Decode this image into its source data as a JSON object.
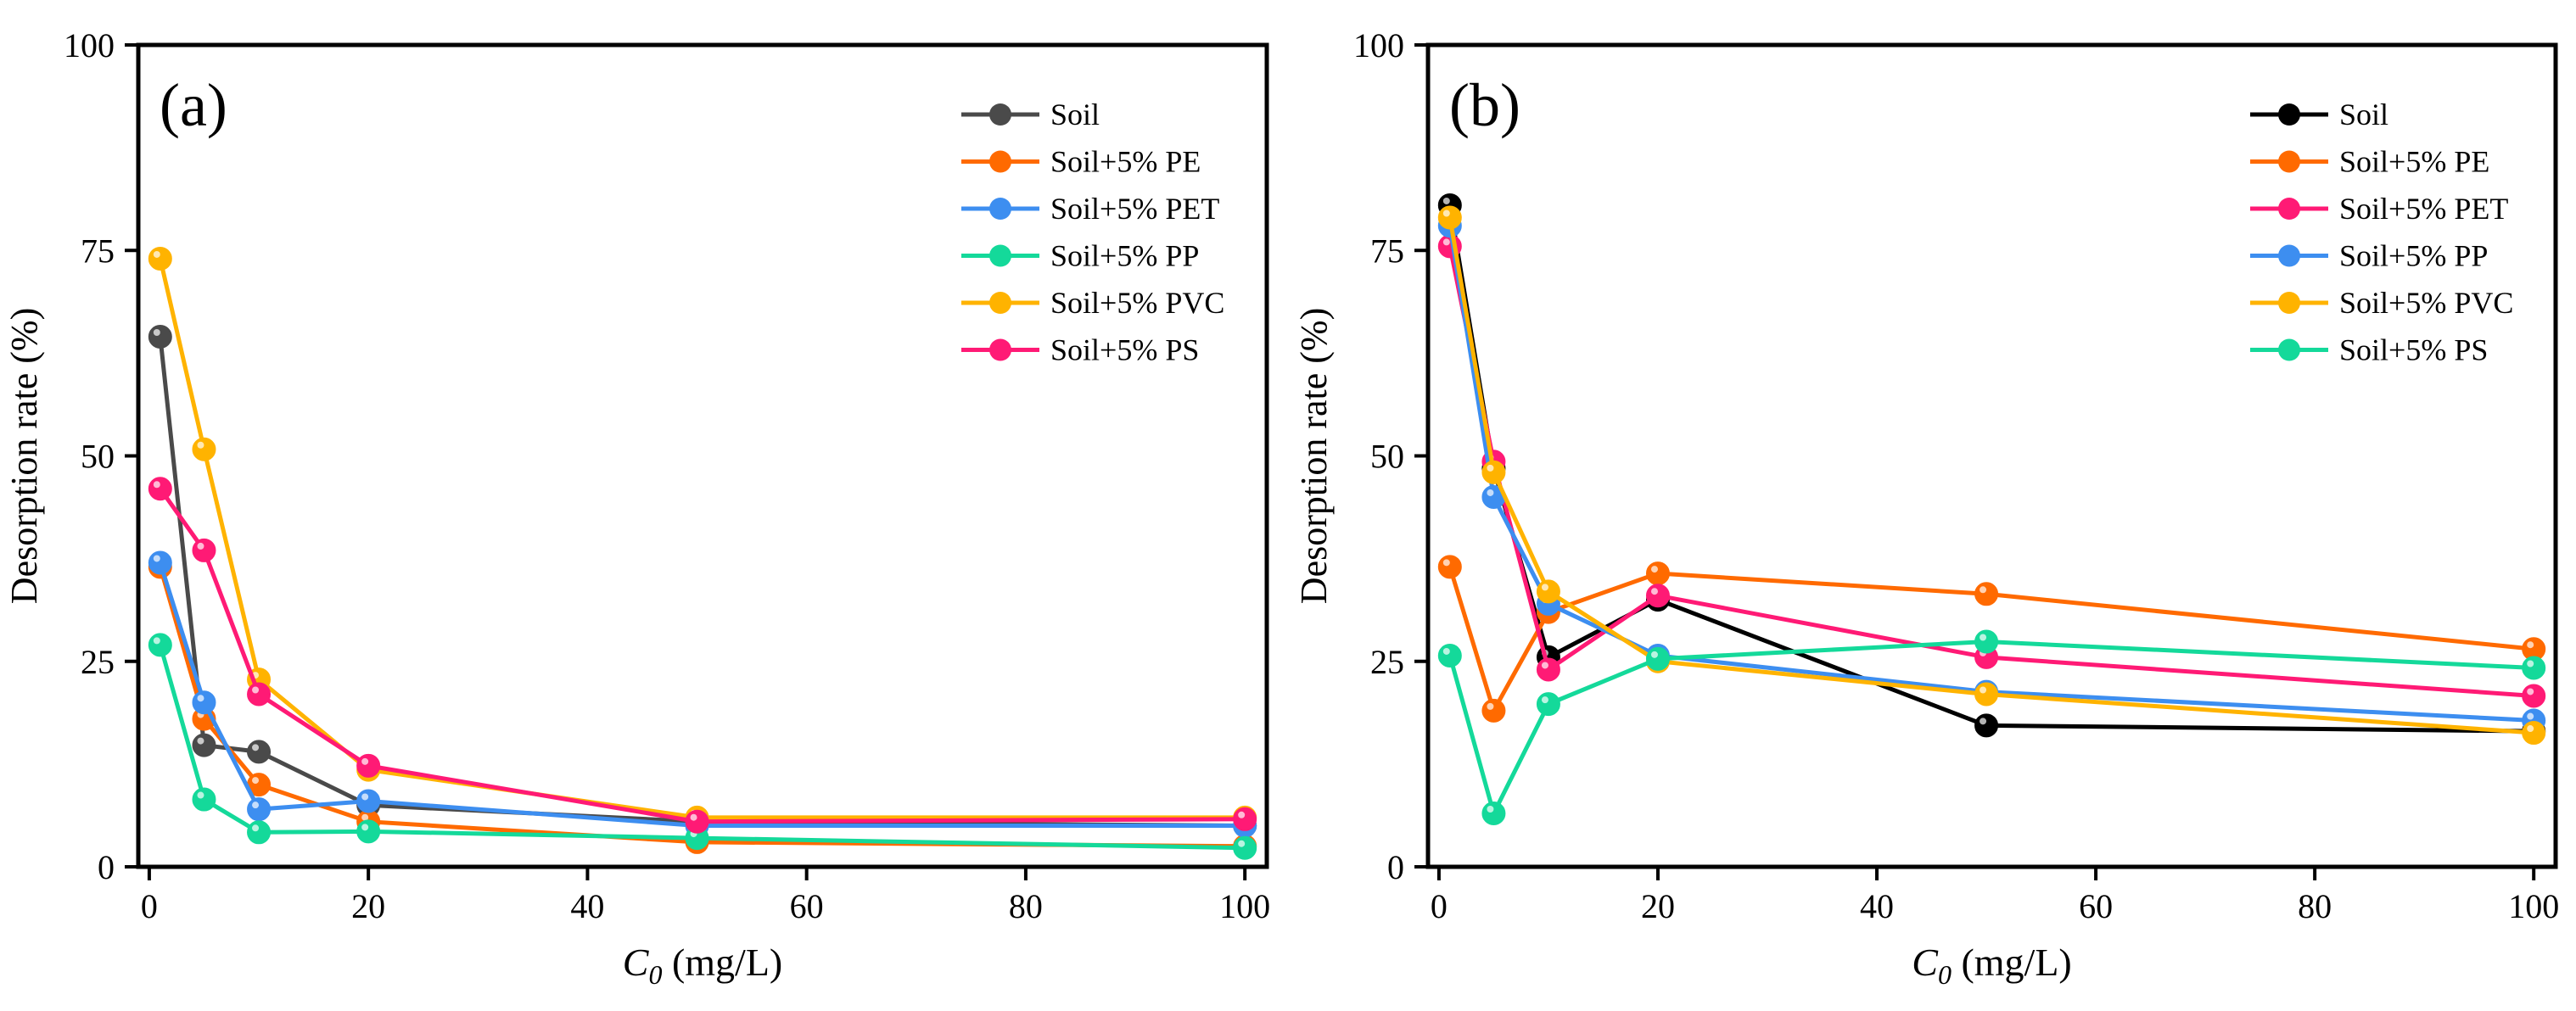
{
  "chart_data": [
    {
      "type": "line",
      "panel_label": "(a)",
      "xlabel_italic": "C",
      "xlabel_sub": "0",
      "xlabel_rest": " (mg/L)",
      "ylabel": "Desorption rate (%)",
      "xlim": [
        -1,
        102
      ],
      "ylim": [
        0,
        100
      ],
      "xticks": [
        0,
        20,
        40,
        60,
        80,
        100
      ],
      "yticks": [
        0,
        25,
        50,
        75,
        100
      ],
      "legend_position": "top-right",
      "x": [
        1,
        5,
        10,
        20,
        50,
        100
      ],
      "series": [
        {
          "name": "Soil",
          "color": "#4a4a4a",
          "values": [
            64.5,
            14.8,
            14.0,
            7.5,
            5.5,
            5.0
          ]
        },
        {
          "name": "Soil+5% PE",
          "color": "#ff6a00",
          "values": [
            36.5,
            18.0,
            10.0,
            5.5,
            3.0,
            2.5
          ]
        },
        {
          "name": "Soil+5% PET",
          "color": "#3d8ef0",
          "values": [
            37.0,
            20.0,
            7.0,
            8.0,
            5.0,
            5.0
          ]
        },
        {
          "name": "Soil+5% PP",
          "color": "#14d99a",
          "values": [
            27.0,
            8.2,
            4.2,
            4.3,
            3.5,
            2.3
          ]
        },
        {
          "name": "Soil+5% PVC",
          "color": "#ffb300",
          "values": [
            74.0,
            50.8,
            22.8,
            11.8,
            6.0,
            6.0
          ]
        },
        {
          "name": "Soil+5% PS",
          "color": "#ff1a75",
          "values": [
            46.0,
            38.5,
            21.0,
            12.3,
            5.5,
            5.8
          ]
        }
      ]
    },
    {
      "type": "line",
      "panel_label": "(b)",
      "xlabel_italic": "C",
      "xlabel_sub": "0",
      "xlabel_rest": " (mg/L)",
      "ylabel": "Desorption rate (%)",
      "xlim": [
        -1,
        102
      ],
      "ylim": [
        0,
        100
      ],
      "xticks": [
        0,
        20,
        40,
        60,
        80,
        100
      ],
      "yticks": [
        0,
        25,
        50,
        75,
        100
      ],
      "legend_position": "top-right",
      "x": [
        1,
        5,
        10,
        20,
        50,
        100
      ],
      "series": [
        {
          "name": "Soil",
          "color": "#000000",
          "values": [
            80.5,
            48.5,
            25.5,
            32.5,
            17.2,
            16.5
          ]
        },
        {
          "name": "Soil+5% PE",
          "color": "#ff6a00",
          "values": [
            36.5,
            19.0,
            31.0,
            35.7,
            33.2,
            26.5
          ]
        },
        {
          "name": "Soil+5% PET",
          "color": "#ff1a75",
          "values": [
            75.5,
            49.3,
            24.0,
            33.0,
            25.5,
            20.8
          ]
        },
        {
          "name": "Soil+5% PP",
          "color": "#3d8ef0",
          "values": [
            78.0,
            45.0,
            32.0,
            25.7,
            21.3,
            17.8
          ]
        },
        {
          "name": "Soil+5% PVC",
          "color": "#ffb300",
          "values": [
            79.0,
            48.0,
            33.5,
            25.0,
            21.0,
            16.3
          ]
        },
        {
          "name": "Soil+5% PS",
          "color": "#14d99a",
          "values": [
            25.7,
            6.5,
            19.8,
            25.3,
            27.4,
            24.2
          ]
        }
      ]
    }
  ]
}
